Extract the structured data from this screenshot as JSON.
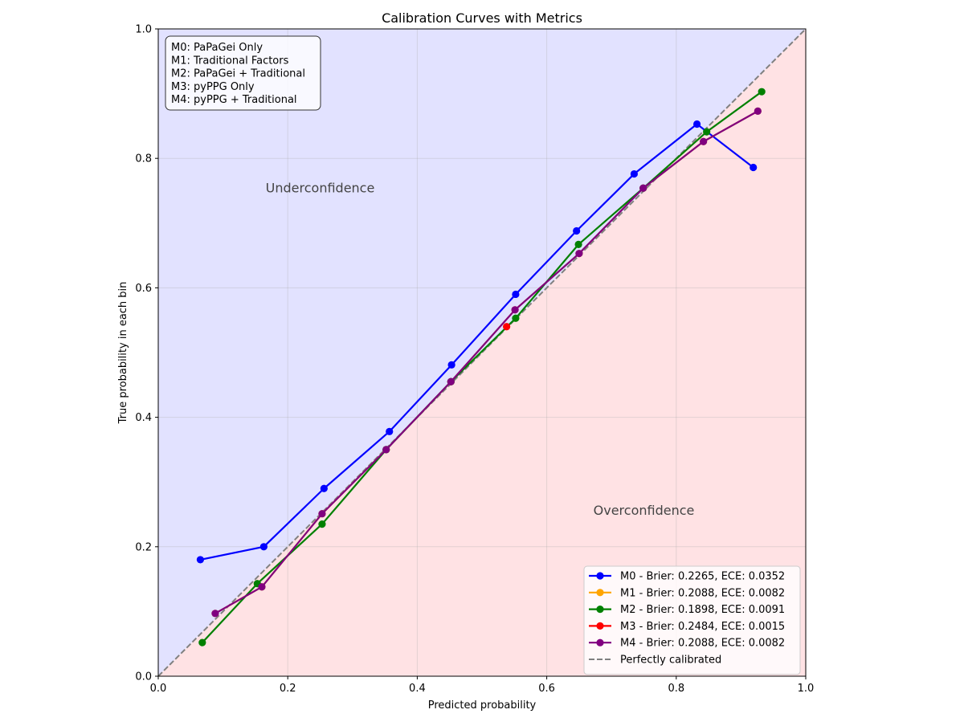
{
  "chart_data": {
    "type": "line",
    "title": "Calibration Curves with Metrics",
    "xlabel": "Predicted probability",
    "ylabel": "True probability in each bin",
    "xlim": [
      0.0,
      1.0
    ],
    "ylim": [
      0.0,
      1.0
    ],
    "xticks": [
      "0.0",
      "0.2",
      "0.4",
      "0.6",
      "0.8",
      "1.0"
    ],
    "yticks": [
      "0.0",
      "0.2",
      "0.4",
      "0.6",
      "0.8",
      "1.0"
    ],
    "grid": true,
    "regions": {
      "upper": {
        "label": "Underconfidence",
        "color": "#e2e2ff",
        "label_at": [
          0.25,
          0.755
        ]
      },
      "lower": {
        "label": "Overconfidence",
        "color": "#ffe2e4",
        "label_at": [
          0.75,
          0.257
        ]
      }
    },
    "annotation_box": {
      "lines": [
        "M0: PaPaGei Only",
        "M1: Traditional Factors",
        "M2: PaPaGei + Traditional",
        "M3: pyPPG Only",
        "M4: pyPPG + Traditional"
      ],
      "placement": "top-left"
    },
    "legend_placement": "lower-right",
    "series": [
      {
        "name": "M0 - Brier: 0.2265, ECE: 0.0352",
        "color": "#0000ff",
        "x": [
          0.065,
          0.163,
          0.256,
          0.357,
          0.453,
          0.552,
          0.646,
          0.735,
          0.832,
          0.919
        ],
        "y": [
          0.18,
          0.2,
          0.29,
          0.378,
          0.481,
          0.59,
          0.688,
          0.776,
          0.853,
          0.786
        ]
      },
      {
        "name": "M1 - Brier: 0.2088, ECE: 0.0082",
        "color": "#ffa500",
        "x": [
          0.088,
          0.16,
          0.253,
          0.352,
          0.452,
          0.551,
          0.65,
          0.749,
          0.842,
          0.926
        ],
        "y": [
          0.097,
          0.138,
          0.251,
          0.35,
          0.455,
          0.566,
          0.653,
          0.754,
          0.826,
          0.873
        ]
      },
      {
        "name": "M2 - Brier: 0.1898, ECE: 0.0091",
        "color": "#008000",
        "x": [
          0.068,
          0.153,
          0.253,
          0.352,
          0.452,
          0.552,
          0.649,
          0.749,
          0.847,
          0.932
        ],
        "y": [
          0.052,
          0.143,
          0.235,
          0.35,
          0.455,
          0.553,
          0.667,
          0.754,
          0.841,
          0.903
        ]
      },
      {
        "name": "M3 - Brier: 0.2484, ECE: 0.0015",
        "color": "#ff0000",
        "x": [
          0.538
        ],
        "y": [
          0.54
        ]
      },
      {
        "name": "M4 - Brier: 0.2088, ECE: 0.0082",
        "color": "#800080",
        "x": [
          0.088,
          0.16,
          0.253,
          0.352,
          0.452,
          0.551,
          0.65,
          0.749,
          0.842,
          0.926
        ],
        "y": [
          0.097,
          0.138,
          0.251,
          0.35,
          0.455,
          0.566,
          0.653,
          0.754,
          0.826,
          0.873
        ]
      }
    ],
    "reference_line": {
      "name": "Perfectly calibrated",
      "color": "#808080",
      "x": [
        0.0,
        1.0
      ],
      "y": [
        0.0,
        1.0
      ]
    }
  }
}
